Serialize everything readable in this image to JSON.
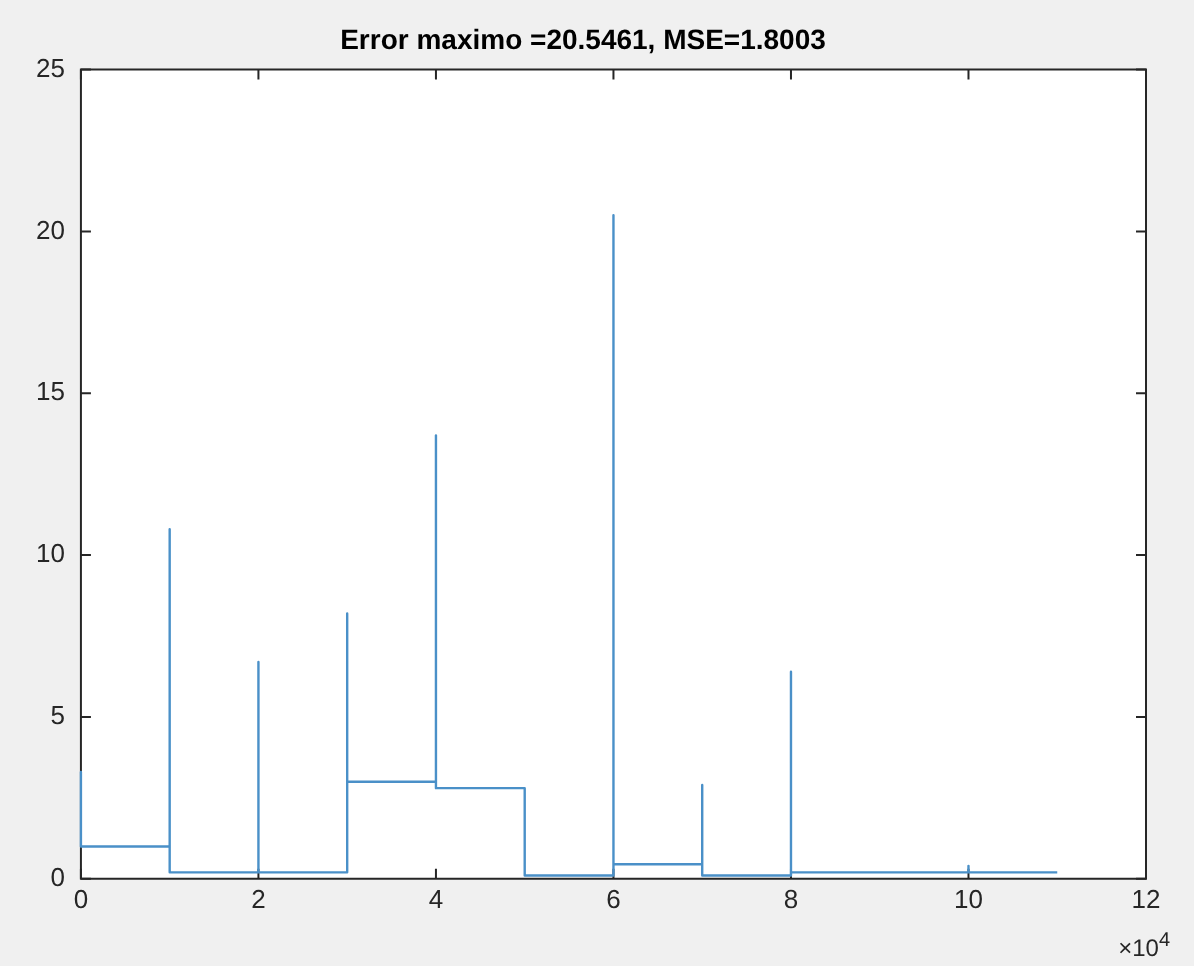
{
  "chart_data": {
    "type": "line",
    "title": "Error maximo =20.5461, MSE=1.8003",
    "series": [
      {
        "color": "#4a90c8",
        "x": [
          0,
          0,
          1,
          1,
          1,
          2,
          2,
          2,
          3,
          3,
          3,
          4,
          4,
          4,
          5,
          5,
          6,
          6,
          6,
          7,
          7,
          7,
          8,
          8,
          8,
          10,
          10,
          10,
          11
        ],
        "values": [
          3.3,
          1.0,
          1.0,
          10.8,
          0.2,
          0.2,
          6.7,
          0.2,
          0.2,
          8.2,
          3.0,
          3.0,
          13.7,
          2.8,
          2.8,
          0.1,
          0.1,
          20.5,
          0.45,
          0.45,
          2.9,
          0.1,
          0.1,
          6.4,
          0.2,
          0.2,
          0.4,
          0.2,
          0.2
        ]
      }
    ],
    "xlim": [
      0,
      12
    ],
    "xticks": [
      0,
      2,
      4,
      6,
      8,
      10,
      12
    ],
    "ylim": [
      0,
      25
    ],
    "yticks": [
      0,
      5,
      10,
      15,
      20,
      25
    ],
    "annotations": [
      "×10$^{4}$"
    ],
    "grid": false,
    "legend": false,
    "marker": "none",
    "line_style": "solid"
  }
}
